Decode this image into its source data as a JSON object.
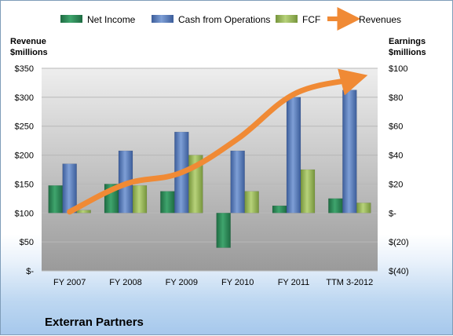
{
  "chart_data": {
    "type": "bar",
    "categories": [
      "FY 2007",
      "FY 2008",
      "FY 2009",
      "FY 2010",
      "FY 2011",
      "TTM 3-2012"
    ],
    "series": [
      {
        "name": "Net Income",
        "axis": "right",
        "color": "#2e8b57",
        "values": [
          19,
          20,
          15,
          -24,
          5,
          10
        ]
      },
      {
        "name": "Cash from Operations",
        "axis": "right",
        "color": "#5b7fbf",
        "values": [
          34,
          43,
          56,
          43,
          80,
          85
        ]
      },
      {
        "name": "FCF",
        "axis": "right",
        "color": "#9bbb59",
        "values": [
          2,
          19,
          40,
          15,
          30,
          7
        ]
      },
      {
        "name": "Revenues",
        "axis": "left",
        "type": "line",
        "color": "#f08a35",
        "values": [
          102,
          150,
          170,
          228,
          305,
          330
        ]
      }
    ],
    "left_axis": {
      "label_line1": "Revenue",
      "label_line2": "$millions",
      "ylim": [
        0,
        350
      ],
      "ticks": [
        "$350",
        "$300",
        "$250",
        "$200",
        "$150",
        "$100",
        "$50",
        "$-"
      ]
    },
    "right_axis": {
      "label_line1": "Earnings",
      "label_line2": "$millions",
      "ylim": [
        -40,
        100
      ],
      "ticks": [
        "$100",
        "$80",
        "$60",
        "$40",
        "$20",
        "$-",
        "$(20)",
        "$(40)"
      ]
    },
    "legend_position": "top",
    "company": "Exterran Partners"
  }
}
